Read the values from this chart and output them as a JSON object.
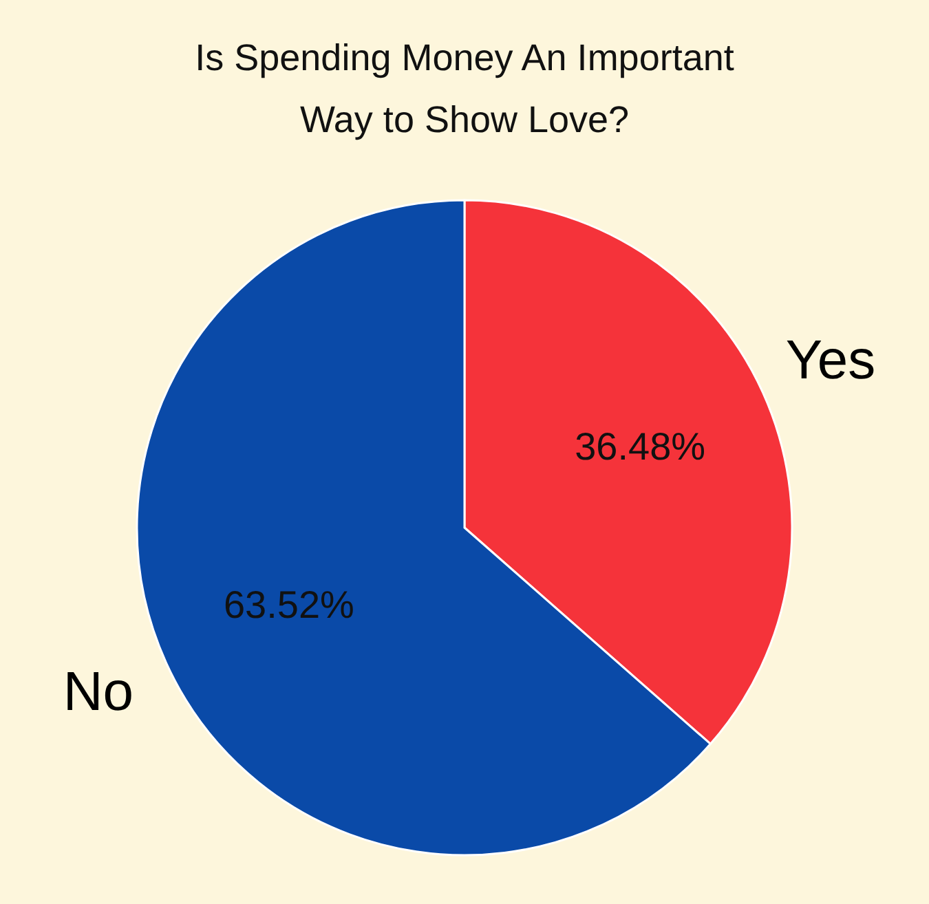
{
  "chart_data": {
    "type": "pie",
    "title": "Is Spending Money An Important\nWay to Show Love?",
    "categories": [
      "Yes",
      "No"
    ],
    "values": [
      36.48,
      63.52
    ],
    "colors": [
      "#f5333a",
      "#0a4aa8"
    ],
    "value_labels": [
      "36.48%",
      "63.52%"
    ],
    "legend": false
  }
}
